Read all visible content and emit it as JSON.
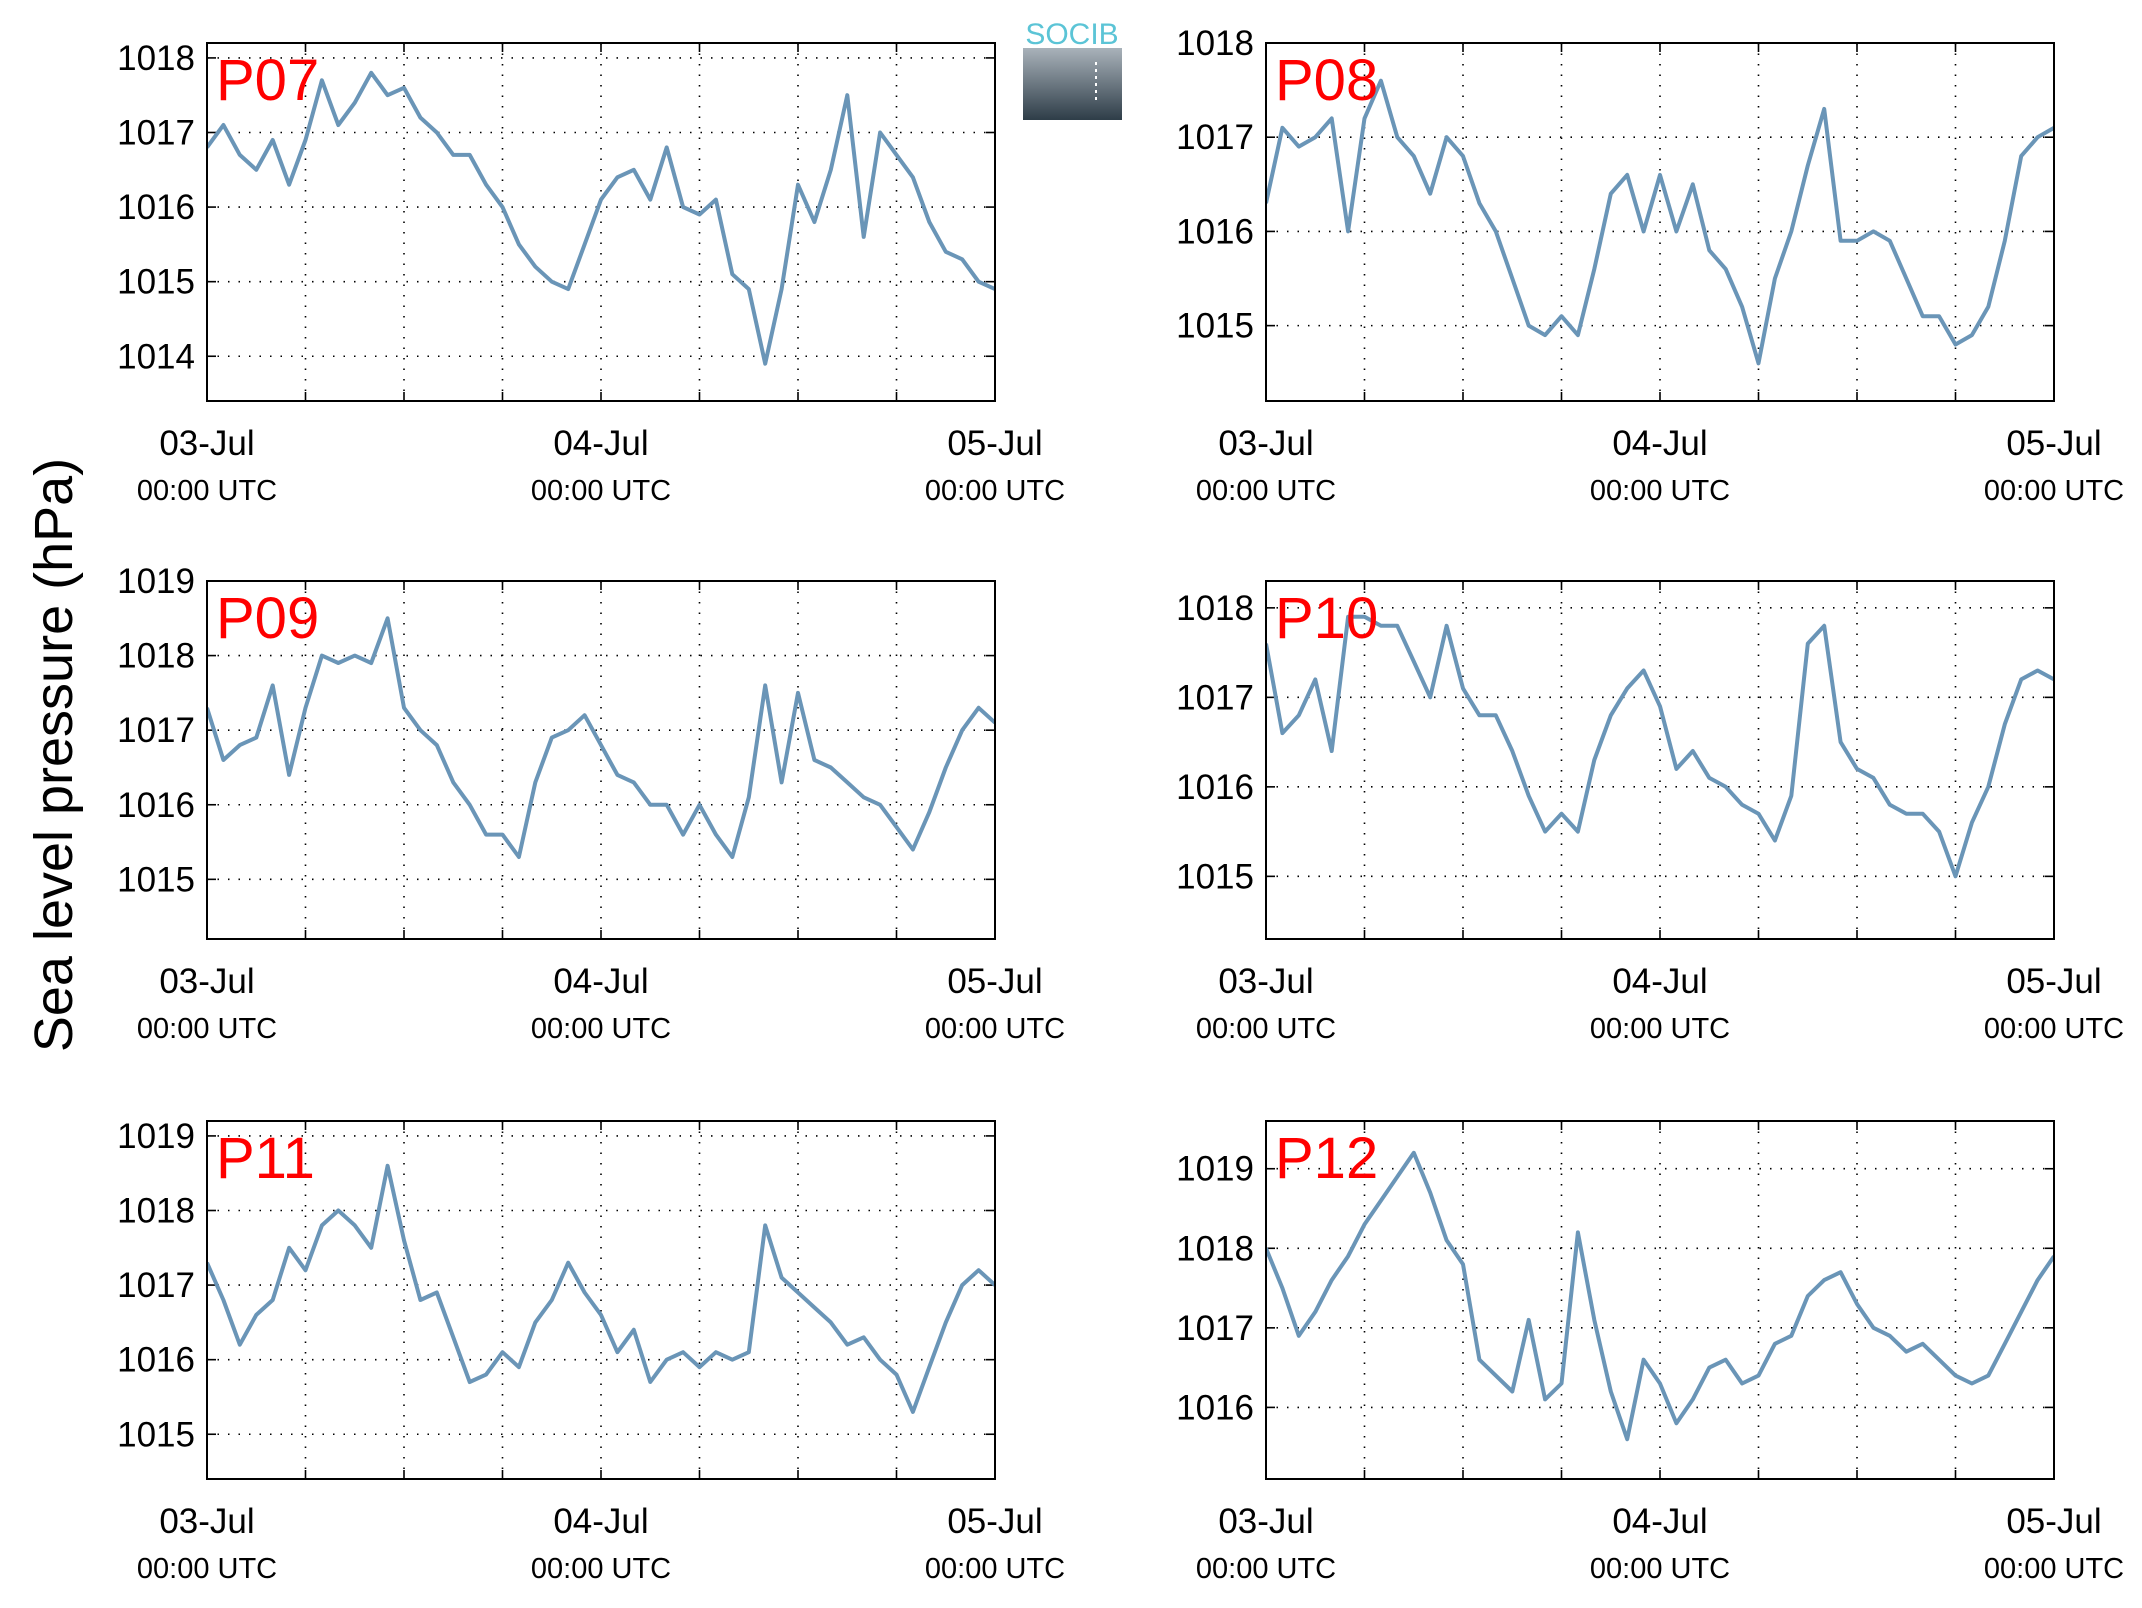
{
  "figure": {
    "ylabel": "Sea level pressure (hPa)",
    "logo_text": "SOCIB",
    "line_color": "#6a95b7",
    "title_color": "#ff0000"
  },
  "chart_data": [
    {
      "type": "line",
      "title": "P07",
      "x_ticks": [
        {
          "date": "03-Jul",
          "time": "00:00 UTC"
        },
        {
          "date": "04-Jul",
          "time": "00:00 UTC"
        },
        {
          "date": "05-Jul",
          "time": "00:00 UTC"
        }
      ],
      "xlim": [
        "03-Jul 00:00",
        "05-Jul 00:00"
      ],
      "grid": true,
      "y_ticks": [
        1014,
        1015,
        1016,
        1017,
        1018
      ],
      "ylim": [
        1013.4,
        1018.2
      ],
      "series": [
        {
          "x_hours": [
            0,
            1,
            2,
            3,
            4,
            5,
            6,
            7,
            8,
            9,
            10,
            11,
            12,
            13,
            14,
            15,
            16,
            17,
            18,
            19,
            20,
            21,
            22,
            23,
            24,
            25,
            26,
            27,
            28,
            29,
            30,
            31,
            32,
            33,
            34,
            35,
            36,
            37,
            38,
            39,
            40,
            41,
            42,
            43,
            44,
            45,
            46,
            47,
            48
          ],
          "values": [
            1016.8,
            1017.1,
            1016.7,
            1016.5,
            1016.9,
            1016.3,
            1016.9,
            1017.7,
            1017.1,
            1017.4,
            1017.8,
            1017.5,
            1017.6,
            1017.2,
            1017.0,
            1016.7,
            1016.7,
            1016.3,
            1016.0,
            1015.5,
            1015.2,
            1015.0,
            1014.9,
            1015.5,
            1016.1,
            1016.4,
            1016.5,
            1016.1,
            1016.8,
            1016.0,
            1015.9,
            1016.1,
            1015.1,
            1014.9,
            1013.9,
            1014.9,
            1016.3,
            1015.8,
            1016.5,
            1017.5,
            1015.6,
            1017.0,
            1016.7,
            1016.4,
            1015.8,
            1015.4,
            1015.3,
            1015.0,
            1014.9
          ]
        }
      ]
    },
    {
      "type": "line",
      "title": "P08",
      "x_ticks": [
        {
          "date": "03-Jul",
          "time": "00:00 UTC"
        },
        {
          "date": "04-Jul",
          "time": "00:00 UTC"
        },
        {
          "date": "05-Jul",
          "time": "00:00 UTC"
        }
      ],
      "xlim": [
        "03-Jul 00:00",
        "05-Jul 00:00"
      ],
      "grid": true,
      "y_ticks": [
        1015,
        1016,
        1017,
        1018
      ],
      "ylim": [
        1014.2,
        1018.0
      ],
      "series": [
        {
          "x_hours": [
            0,
            1,
            2,
            3,
            4,
            5,
            6,
            7,
            8,
            9,
            10,
            11,
            12,
            13,
            14,
            15,
            16,
            17,
            18,
            19,
            20,
            21,
            22,
            23,
            24,
            25,
            26,
            27,
            28,
            29,
            30,
            31,
            32,
            33,
            34,
            35,
            36,
            37,
            38,
            39,
            40,
            41,
            42,
            43,
            44,
            45,
            46,
            47,
            48
          ],
          "values": [
            1016.3,
            1017.1,
            1016.9,
            1017.0,
            1017.2,
            1016.0,
            1017.2,
            1017.6,
            1017.0,
            1016.8,
            1016.4,
            1017.0,
            1016.8,
            1016.3,
            1016.0,
            1015.5,
            1015.0,
            1014.9,
            1015.1,
            1014.9,
            1015.6,
            1016.4,
            1016.6,
            1016.0,
            1016.6,
            1016.0,
            1016.5,
            1015.8,
            1015.6,
            1015.2,
            1014.6,
            1015.5,
            1016.0,
            1016.7,
            1017.3,
            1015.9,
            1015.9,
            1016.0,
            1015.9,
            1015.5,
            1015.1,
            1015.1,
            1014.8,
            1014.9,
            1015.2,
            1015.9,
            1016.8,
            1017.0,
            1017.1
          ]
        }
      ]
    },
    {
      "type": "line",
      "title": "P09",
      "x_ticks": [
        {
          "date": "03-Jul",
          "time": "00:00 UTC"
        },
        {
          "date": "04-Jul",
          "time": "00:00 UTC"
        },
        {
          "date": "05-Jul",
          "time": "00:00 UTC"
        }
      ],
      "xlim": [
        "03-Jul 00:00",
        "05-Jul 00:00"
      ],
      "grid": true,
      "y_ticks": [
        1015,
        1016,
        1017,
        1018,
        1019
      ],
      "ylim": [
        1014.2,
        1019.0
      ],
      "series": [
        {
          "x_hours": [
            0,
            1,
            2,
            3,
            4,
            5,
            6,
            7,
            8,
            9,
            10,
            11,
            12,
            13,
            14,
            15,
            16,
            17,
            18,
            19,
            20,
            21,
            22,
            23,
            24,
            25,
            26,
            27,
            28,
            29,
            30,
            31,
            32,
            33,
            34,
            35,
            36,
            37,
            38,
            39,
            40,
            41,
            42,
            43,
            44,
            45,
            46,
            47,
            48
          ],
          "values": [
            1017.3,
            1016.6,
            1016.8,
            1016.9,
            1017.6,
            1016.4,
            1017.3,
            1018.0,
            1017.9,
            1018.0,
            1017.9,
            1018.5,
            1017.3,
            1017.0,
            1016.8,
            1016.3,
            1016.0,
            1015.6,
            1015.6,
            1015.3,
            1016.3,
            1016.9,
            1017.0,
            1017.2,
            1016.8,
            1016.4,
            1016.3,
            1016.0,
            1016.0,
            1015.6,
            1016.0,
            1015.6,
            1015.3,
            1016.1,
            1017.6,
            1016.3,
            1017.5,
            1016.6,
            1016.5,
            1016.3,
            1016.1,
            1016.0,
            1015.7,
            1015.4,
            1015.9,
            1016.5,
            1017.0,
            1017.3,
            1017.1
          ]
        }
      ]
    },
    {
      "type": "line",
      "title": "P10",
      "x_ticks": [
        {
          "date": "03-Jul",
          "time": "00:00 UTC"
        },
        {
          "date": "04-Jul",
          "time": "00:00 UTC"
        },
        {
          "date": "05-Jul",
          "time": "00:00 UTC"
        }
      ],
      "xlim": [
        "03-Jul 00:00",
        "05-Jul 00:00"
      ],
      "grid": true,
      "y_ticks": [
        1015,
        1016,
        1017,
        1018
      ],
      "ylim": [
        1014.3,
        1018.3
      ],
      "series": [
        {
          "x_hours": [
            0,
            1,
            2,
            3,
            4,
            5,
            6,
            7,
            8,
            9,
            10,
            11,
            12,
            13,
            14,
            15,
            16,
            17,
            18,
            19,
            20,
            21,
            22,
            23,
            24,
            25,
            26,
            27,
            28,
            29,
            30,
            31,
            32,
            33,
            34,
            35,
            36,
            37,
            38,
            39,
            40,
            41,
            42,
            43,
            44,
            45,
            46,
            47,
            48
          ],
          "values": [
            1017.6,
            1016.6,
            1016.8,
            1017.2,
            1016.4,
            1017.9,
            1017.9,
            1017.8,
            1017.8,
            1017.4,
            1017.0,
            1017.8,
            1017.1,
            1016.8,
            1016.8,
            1016.4,
            1015.9,
            1015.5,
            1015.7,
            1015.5,
            1016.3,
            1016.8,
            1017.1,
            1017.3,
            1016.9,
            1016.2,
            1016.4,
            1016.1,
            1016.0,
            1015.8,
            1015.7,
            1015.4,
            1015.9,
            1017.6,
            1017.8,
            1016.5,
            1016.2,
            1016.1,
            1015.8,
            1015.7,
            1015.7,
            1015.5,
            1015.0,
            1015.6,
            1016.0,
            1016.7,
            1017.2,
            1017.3,
            1017.2
          ]
        }
      ]
    },
    {
      "type": "line",
      "title": "P11",
      "x_ticks": [
        {
          "date": "03-Jul",
          "time": "00:00 UTC"
        },
        {
          "date": "04-Jul",
          "time": "00:00 UTC"
        },
        {
          "date": "05-Jul",
          "time": "00:00 UTC"
        }
      ],
      "xlim": [
        "03-Jul 00:00",
        "05-Jul 00:00"
      ],
      "grid": true,
      "y_ticks": [
        1015,
        1016,
        1017,
        1018,
        1019
      ],
      "ylim": [
        1014.4,
        1019.2
      ],
      "series": [
        {
          "x_hours": [
            0,
            1,
            2,
            3,
            4,
            5,
            6,
            7,
            8,
            9,
            10,
            11,
            12,
            13,
            14,
            15,
            16,
            17,
            18,
            19,
            20,
            21,
            22,
            23,
            24,
            25,
            26,
            27,
            28,
            29,
            30,
            31,
            32,
            33,
            34,
            35,
            36,
            37,
            38,
            39,
            40,
            41,
            42,
            43,
            44,
            45,
            46,
            47,
            48
          ],
          "values": [
            1017.3,
            1016.8,
            1016.2,
            1016.6,
            1016.8,
            1017.5,
            1017.2,
            1017.8,
            1018.0,
            1017.8,
            1017.5,
            1018.6,
            1017.6,
            1016.8,
            1016.9,
            1016.3,
            1015.7,
            1015.8,
            1016.1,
            1015.9,
            1016.5,
            1016.8,
            1017.3,
            1016.9,
            1016.6,
            1016.1,
            1016.4,
            1015.7,
            1016.0,
            1016.1,
            1015.9,
            1016.1,
            1016.0,
            1016.1,
            1017.8,
            1017.1,
            1016.9,
            1016.7,
            1016.5,
            1016.2,
            1016.3,
            1016.0,
            1015.8,
            1015.3,
            1015.9,
            1016.5,
            1017.0,
            1017.2,
            1017.0
          ]
        }
      ]
    },
    {
      "type": "line",
      "title": "P12",
      "x_ticks": [
        {
          "date": "03-Jul",
          "time": "00:00 UTC"
        },
        {
          "date": "04-Jul",
          "time": "00:00 UTC"
        },
        {
          "date": "05-Jul",
          "time": "00:00 UTC"
        }
      ],
      "xlim": [
        "03-Jul 00:00",
        "05-Jul 00:00"
      ],
      "grid": true,
      "y_ticks": [
        1016,
        1017,
        1018,
        1019
      ],
      "ylim": [
        1015.1,
        1019.6
      ],
      "series": [
        {
          "x_hours": [
            0,
            1,
            2,
            3,
            4,
            5,
            6,
            7,
            8,
            9,
            10,
            11,
            12,
            13,
            14,
            15,
            16,
            17,
            18,
            19,
            20,
            21,
            22,
            23,
            24,
            25,
            26,
            27,
            28,
            29,
            30,
            31,
            32,
            33,
            34,
            35,
            36,
            37,
            38,
            39,
            40,
            41,
            42,
            43,
            44,
            45,
            46,
            47,
            48
          ],
          "values": [
            1018.0,
            1017.5,
            1016.9,
            1017.2,
            1017.6,
            1017.9,
            1018.3,
            1018.6,
            1018.9,
            1019.2,
            1018.7,
            1018.1,
            1017.8,
            1016.6,
            1016.4,
            1016.2,
            1017.1,
            1016.1,
            1016.3,
            1018.2,
            1017.1,
            1016.2,
            1015.6,
            1016.6,
            1016.3,
            1015.8,
            1016.1,
            1016.5,
            1016.6,
            1016.3,
            1016.4,
            1016.8,
            1016.9,
            1017.4,
            1017.6,
            1017.7,
            1017.3,
            1017.0,
            1016.9,
            1016.7,
            1016.8,
            1016.6,
            1016.4,
            1016.3,
            1016.4,
            1016.8,
            1017.2,
            1017.6,
            1017.9
          ]
        }
      ]
    }
  ]
}
